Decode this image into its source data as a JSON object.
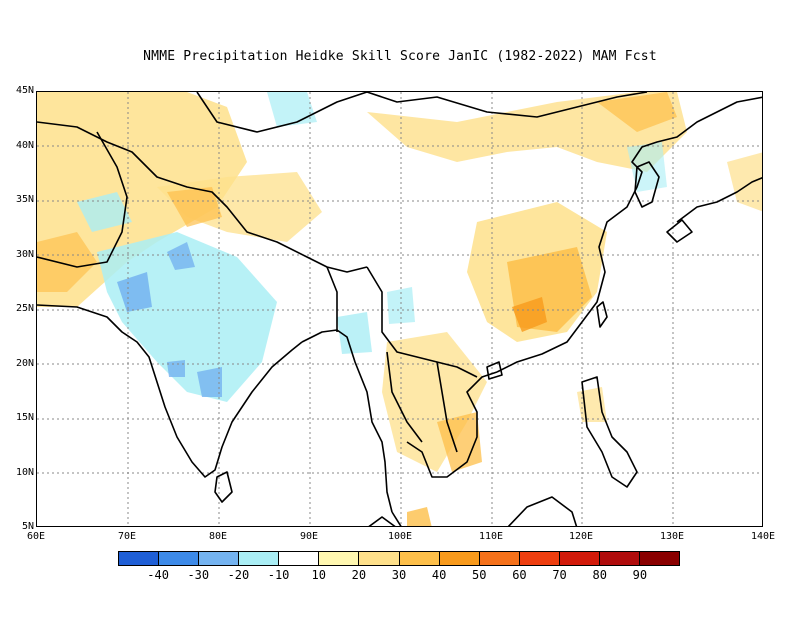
{
  "title": "NMME  Precipitation Heidke Skill Score JanIC (1982-2022) MAM Fcst",
  "lat_labels": [
    "45N",
    "40N",
    "35N",
    "30N",
    "25N",
    "20N",
    "15N",
    "10N",
    "5N"
  ],
  "lon_labels": [
    "60E",
    "70E",
    "80E",
    "90E",
    "100E",
    "110E",
    "120E",
    "130E",
    "140E"
  ],
  "colorbar": {
    "colors": [
      "#1f5fd6",
      "#3d8ae8",
      "#74b3f0",
      "#aaeef5",
      "#ffffff",
      "#fff7b0",
      "#fee08b",
      "#fdbf4a",
      "#f89a1c",
      "#f5711a",
      "#ee3e0f",
      "#d21a0a",
      "#b00c0c",
      "#8a0000"
    ],
    "labels": [
      "-40",
      "-30",
      "-20",
      "-10",
      "10",
      "20",
      "30",
      "40",
      "50",
      "60",
      "70",
      "80",
      "90"
    ]
  },
  "legend": {
    "positive_color": "#fee08b",
    "strong_positive_color": "#f8b24a",
    "negative_color": "#aaeef5",
    "strong_negative_color": "#74b3f0"
  }
}
